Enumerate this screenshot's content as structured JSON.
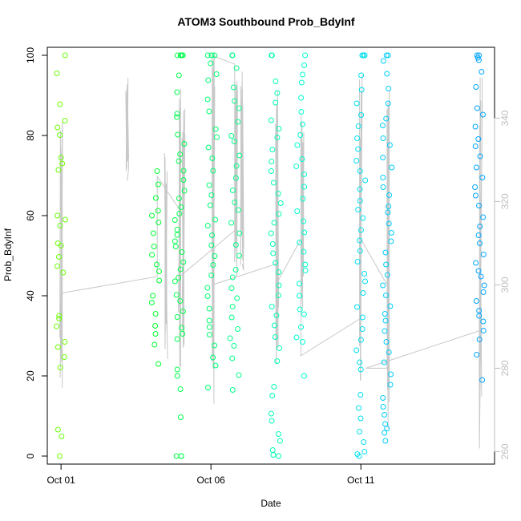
{
  "chart_data": {
    "type": "scatter",
    "title": "ATOM3 Southbound Prob_BdyInf",
    "xlabel": "Date",
    "ylabel": "Prob_BdyInf",
    "x_unit": "date",
    "xlim": [
      "2011-09-30T13:00",
      "2011-10-15T11:00"
    ],
    "ylim": [
      -2,
      102
    ],
    "x_ticks": [
      {
        "date": "2011-10-01",
        "label": "Oct 01"
      },
      {
        "date": "2011-10-06",
        "label": "Oct 06"
      },
      {
        "date": "2011-10-11",
        "label": "Oct 11"
      }
    ],
    "y_ticks": [
      0,
      20,
      40,
      60,
      80,
      100
    ],
    "y2_ticks": [
      260,
      280,
      300,
      320,
      340
    ],
    "y2lim": [
      257,
      357
    ],
    "grid": false,
    "legend": "none",
    "colors": {
      "left_axis": "#000000",
      "right_axis": "#bebebe",
      "line": "#c8c8c8"
    },
    "series": [
      {
        "kind": "points",
        "symbol": "open-circle",
        "color_gradient": [
          "#80ff00",
          "#00ff20",
          "#00ff80",
          "#00ffe0",
          "#00c0ff",
          "#00a0ff"
        ],
        "clusters": [
          {
            "date": "2011-10-01T00:00",
            "y": [
              100,
              95.5,
              87.8,
              83.7,
              82,
              80.1,
              74.5,
              73,
              71.4,
              60,
              59,
              57.5,
              53.1,
              52.5,
              49.7,
              47.4,
              45.8,
              35,
              34.3,
              32.4,
              28.5,
              27.2,
              24.7,
              22.1,
              6.6,
              4.9,
              0
            ]
          },
          {
            "date": "2011-10-04T03:00",
            "y": [
              71.1,
              67.8,
              64.4,
              61.2,
              60,
              58.3,
              55.6,
              52.3,
              50.2,
              47.8,
              46.1,
              43.8,
              40,
              38.3,
              35.5,
              32.5,
              30.5,
              27.8,
              23
            ]
          },
          {
            "date": "2011-10-04T23:00",
            "y": [
              100,
              100,
              100,
              100,
              100,
              95,
              90.8,
              85.4,
              84.6,
              80.2,
              77.9,
              75.3,
              73.6,
              71.2,
              68.9,
              66.2,
              64.3,
              62.1,
              60.5,
              58.9,
              56.5,
              55.2,
              53.6,
              52.3,
              50.9,
              48.4,
              46.6,
              44.5,
              43.6,
              40.2,
              38.7,
              36.1,
              34.7,
              32,
              30.5,
              29.2,
              21.6,
              20,
              16.7,
              9.7,
              0,
              0,
              0
            ]
          },
          {
            "date": "2011-10-06T01:00",
            "y": [
              100,
              100,
              100,
              100,
              98,
              95.3,
              93.8,
              89,
              86,
              81.6,
              79.6,
              77,
              74.3,
              71.2,
              67.6,
              65.1,
              62.6,
              59,
              57.5,
              55.1,
              52.6,
              49.9,
              47.7,
              45.1,
              42,
              39.9,
              36.8,
              33.8,
              32.2,
              30.3,
              27.6,
              24.6,
              22.6,
              17.1
            ]
          },
          {
            "date": "2011-10-06T19:00",
            "y": [
              100,
              100,
              100,
              96.8,
              92,
              88.6,
              86.8,
              83.4,
              79.9,
              78.5,
              75,
              72.4,
              69.4,
              66.3,
              63.3,
              61.4,
              58.2,
              55.6,
              52.7,
              50,
              46.5,
              44.6,
              41.9,
              39.4,
              37.3,
              34.6,
              31.7,
              29.4,
              27.5,
              24.4,
              20.2,
              16.5
            ]
          },
          {
            "date": "2011-10-08T04:00",
            "y": [
              100,
              100,
              93.5,
              90.6,
              88.2,
              83.8,
              81.7,
              79.5,
              76.5,
              73.5,
              71.1,
              68.2,
              65.5,
              63.1,
              60.4,
              58.2,
              55.6,
              52.9,
              50.6,
              48.2,
              45.9,
              42.6,
              40.1,
              37.3,
              35.1,
              32.6,
              29.7,
              26.9,
              23.7,
              17.3,
              15.1,
              10.6,
              8.8,
              5.5,
              3.8,
              1.5,
              0.3,
              0
            ]
          },
          {
            "date": "2011-10-09T00:00",
            "y": [
              100,
              97.5,
              95.2,
              93.2,
              89.4,
              85.9,
              82.8,
              80.1,
              77.6,
              74.1,
              72.3,
              70.3,
              67.2,
              64.2,
              61.1,
              58.6,
              55.8,
              53.3,
              51,
              47.8,
              46.3,
              43,
              40,
              36.6,
              35.4,
              32.2,
              29.6,
              28.5,
              20
            ]
          },
          {
            "date": "2011-10-11T00:00",
            "y": [
              100,
              100,
              100,
              95,
              91.4,
              88,
              85.1,
              82.3,
              79.3,
              76.6,
              73.7,
              71.1,
              68.8,
              66.6,
              63.7,
              61.5,
              59.4,
              56.4,
              53.8,
              51.2,
              48.5,
              45.5,
              43.6,
              40.7,
              37.2,
              34.6,
              31.7,
              29,
              26.4,
              23.4,
              21.6,
              15.3,
              12,
              9.4,
              6.1,
              3.5,
              1.1,
              0.5,
              0
            ]
          },
          {
            "date": "2011-10-11T21:00",
            "y": [
              100,
              100,
              98.6,
              95.4,
              91.7,
              88,
              84.2,
              82.5,
              79.3,
              77.6,
              74.5,
              72,
              69.5,
              67.1,
              65.1,
              62.3,
              60.8,
              58,
              55.7,
              53.6,
              50.8,
              47.8,
              45.2,
              42.6,
              40.1,
              37.4,
              35.5,
              33.8,
              31.2,
              28.5,
              25.9,
              23.4,
              20.4,
              17.8,
              14.5,
              12.3,
              10.3,
              8,
              6.9,
              5.8,
              3.8
            ]
          },
          {
            "date": "2011-10-14T23:00",
            "y": [
              100,
              100,
              99.4,
              98.8,
              95.9,
              92.1,
              86.8,
              85.2,
              82.2,
              79.1,
              77.3,
              74.8,
              72,
              69.5,
              67.1,
              65,
              62.5,
              59.6,
              57.3,
              55.1,
              53.1,
              50.3,
              48.2,
              46.2,
              44.8,
              42.6,
              40.9,
              38.7,
              36.3,
              35,
              33.6,
              31.3,
              29.1,
              25.3,
              19
            ]
          }
        ]
      },
      {
        "kind": "line",
        "axis": "right",
        "color": "#c8c8c8",
        "segments": [
          {
            "x": "2011-10-01T00:00",
            "y_max": 343,
            "y_min": 275,
            "end": 298
          },
          {
            "x": "2011-10-03T05:00",
            "y_max": 350,
            "y_min": 326,
            "end": 325
          },
          {
            "x": "2011-10-04T12:00",
            "y_max": 337,
            "y_min": 280,
            "end": 319
          },
          {
            "x": "2011-10-04T23:00",
            "y_max": 350,
            "y_min": 280,
            "end": 302
          },
          {
            "x": "2011-10-05T02:00",
            "y_max": 343,
            "y_min": 282,
            "end": 304
          },
          {
            "x": "2011-10-06T02:00",
            "y_max": 356,
            "y_min": 270,
            "end": 354
          },
          {
            "x": "2011-10-06T20:00",
            "y_max": 352,
            "y_min": 300,
            "end": 314
          },
          {
            "x": "2011-10-07T01:00",
            "y_max": 352,
            "y_min": 303,
            "end": 305
          },
          {
            "x": "2011-10-08T05:00",
            "y_max": 353,
            "y_min": 279,
            "end": 300
          },
          {
            "x": "2011-10-09T01:00",
            "y_max": 345,
            "y_min": 292,
            "end": 303
          },
          {
            "x": "2011-10-11T00:00",
            "y_max": 352,
            "y_min": 276,
            "end": 312
          },
          {
            "x": "2011-10-11T22:00",
            "y_max": 350,
            "y_min": 264,
            "end": 305
          },
          {
            "x": "2011-10-15T00:00",
            "y_max": 350,
            "y_min": 258,
            "end": 290
          }
        ],
        "connector_points": [
          {
            "x": "2011-10-01T00:00",
            "y": 298
          },
          {
            "x": "2011-10-04T05:00",
            "y": 302
          },
          {
            "x": "2011-10-04T05:00",
            "y": 326
          },
          {
            "x": "2011-10-04T23:00",
            "y": 318
          },
          {
            "x": "2011-10-04T23:00",
            "y": 302
          },
          {
            "x": "2011-10-06T19:00",
            "y": 313
          },
          {
            "x": "2011-10-06T19:00",
            "y": 353
          },
          {
            "x": "2011-10-06T01:00",
            "y": 355
          },
          {
            "x": "2011-10-06T01:00",
            "y": 300
          },
          {
            "x": "2011-10-08T04:00",
            "y": 305
          },
          {
            "x": "2011-10-08T04:00",
            "y": 287
          },
          {
            "x": "2011-10-08T04:00",
            "y": 300
          },
          {
            "x": "2011-10-09T00:00",
            "y": 311
          },
          {
            "x": "2011-10-09T00:00",
            "y": 283
          },
          {
            "x": "2011-10-11T00:00",
            "y": 292
          },
          {
            "x": "2011-10-11T00:00",
            "y": 311
          },
          {
            "x": "2011-10-11T21:00",
            "y": 300
          },
          {
            "x": "2011-10-11T21:00",
            "y": 319
          },
          {
            "x": "2011-10-11T21:00",
            "y": 280
          },
          {
            "x": "2011-10-11T04:00",
            "y": 280
          },
          {
            "x": "2011-10-14T23:00",
            "y": 289
          },
          {
            "x": "2011-10-14T23:00",
            "y": 300
          }
        ]
      }
    ]
  }
}
